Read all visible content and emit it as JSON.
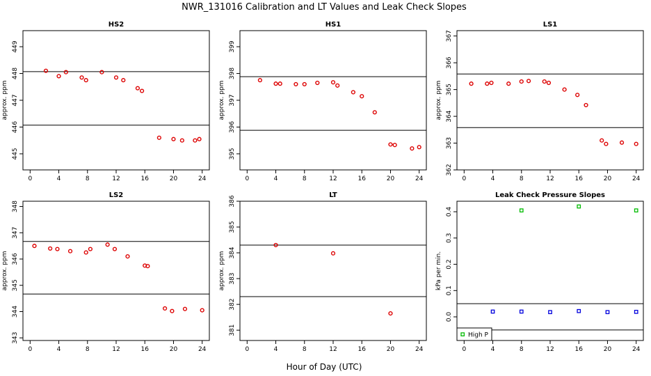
{
  "title": "NWR_131016  Calibration and LT Values and Leak Check Slopes",
  "xlabel": "Hour of Day (UTC)",
  "chart_data": [
    {
      "type": "scatter",
      "title": "HS2",
      "ylabel": "approx. ppm",
      "xlim": [
        -1,
        25
      ],
      "ylim": [
        444.4,
        449.6
      ],
      "xticks": [
        0,
        4,
        8,
        12,
        16,
        20,
        24
      ],
      "yticks": [
        445,
        446,
        447,
        448,
        449
      ],
      "hlines": [
        448.07,
        446.07
      ],
      "marker_color": "#dd0000",
      "points": [
        [
          2.2,
          448.1
        ],
        [
          4.0,
          447.9
        ],
        [
          5.0,
          448.05
        ],
        [
          7.2,
          447.85
        ],
        [
          7.8,
          447.75
        ],
        [
          10.0,
          448.05
        ],
        [
          12.0,
          447.85
        ],
        [
          13.0,
          447.75
        ],
        [
          15.0,
          447.45
        ],
        [
          15.6,
          447.35
        ],
        [
          18.0,
          445.6
        ],
        [
          20.0,
          445.55
        ],
        [
          21.2,
          445.5
        ],
        [
          23.0,
          445.5
        ],
        [
          23.6,
          445.55
        ]
      ]
    },
    {
      "type": "scatter",
      "title": "HS1",
      "ylabel": "approx. ppm",
      "xlim": [
        -1,
        25
      ],
      "ylim": [
        394.4,
        399.6
      ],
      "xticks": [
        0,
        4,
        8,
        12,
        16,
        20,
        24
      ],
      "yticks": [
        395,
        396,
        397,
        398,
        399
      ],
      "hlines": [
        397.88,
        395.88
      ],
      "marker_color": "#dd0000",
      "points": [
        [
          1.8,
          397.75
        ],
        [
          4.0,
          397.62
        ],
        [
          4.6,
          397.62
        ],
        [
          6.8,
          397.6
        ],
        [
          8.0,
          397.6
        ],
        [
          9.8,
          397.65
        ],
        [
          12.0,
          397.67
        ],
        [
          12.6,
          397.55
        ],
        [
          14.8,
          397.3
        ],
        [
          16.0,
          397.15
        ],
        [
          17.8,
          396.55
        ],
        [
          20.0,
          395.35
        ],
        [
          20.6,
          395.33
        ],
        [
          23.0,
          395.2
        ],
        [
          24.0,
          395.25
        ]
      ]
    },
    {
      "type": "scatter",
      "title": "LS1",
      "ylabel": "approx. ppm",
      "xlim": [
        -1,
        25
      ],
      "ylim": [
        362.0,
        367.2
      ],
      "xticks": [
        0,
        4,
        8,
        12,
        16,
        20,
        24
      ],
      "yticks": [
        362,
        363,
        364,
        365,
        366,
        367
      ],
      "hlines": [
        365.58,
        363.58
      ],
      "marker_color": "#dd0000",
      "points": [
        [
          1.0,
          365.22
        ],
        [
          3.2,
          365.22
        ],
        [
          3.8,
          365.25
        ],
        [
          6.2,
          365.22
        ],
        [
          8.0,
          365.3
        ],
        [
          9.0,
          365.32
        ],
        [
          11.2,
          365.3
        ],
        [
          11.8,
          365.25
        ],
        [
          14.0,
          365.0
        ],
        [
          15.8,
          364.8
        ],
        [
          17.0,
          364.42
        ],
        [
          19.2,
          363.1
        ],
        [
          19.8,
          362.97
        ],
        [
          22.0,
          363.02
        ],
        [
          24.0,
          362.97
        ]
      ]
    },
    {
      "type": "scatter",
      "title": "LS2",
      "ylabel": "approx. ppm",
      "xlim": [
        -1,
        25
      ],
      "ylim": [
        342.9,
        348.2
      ],
      "xticks": [
        0,
        4,
        8,
        12,
        16,
        20,
        24
      ],
      "yticks": [
        343,
        344,
        345,
        346,
        347,
        348
      ],
      "hlines": [
        346.67,
        344.67
      ],
      "marker_color": "#dd0000",
      "points": [
        [
          0.6,
          346.5
        ],
        [
          2.8,
          346.4
        ],
        [
          3.8,
          346.38
        ],
        [
          5.6,
          346.3
        ],
        [
          7.8,
          346.25
        ],
        [
          8.4,
          346.38
        ],
        [
          10.8,
          346.55
        ],
        [
          11.8,
          346.38
        ],
        [
          13.6,
          346.1
        ],
        [
          16.0,
          345.75
        ],
        [
          16.4,
          345.73
        ],
        [
          18.8,
          344.12
        ],
        [
          19.8,
          344.02
        ],
        [
          21.6,
          344.1
        ],
        [
          24.0,
          344.05
        ]
      ]
    },
    {
      "type": "scatter",
      "title": "LT",
      "ylabel": "approx. ppm",
      "xlim": [
        -1,
        25
      ],
      "ylim": [
        380.6,
        386.0
      ],
      "xticks": [
        0,
        4,
        8,
        12,
        16,
        20,
        24
      ],
      "yticks": [
        381,
        382,
        383,
        384,
        385,
        386
      ],
      "hlines": [
        384.3,
        382.3
      ],
      "marker_color": "#dd0000",
      "points": [
        [
          4.0,
          384.3
        ],
        [
          12.0,
          383.98
        ],
        [
          20.0,
          381.65
        ]
      ]
    },
    {
      "type": "scatter",
      "title": "Leak Check Pressure Slopes",
      "ylabel": "kPa per min.",
      "xlim": [
        -1,
        25
      ],
      "ylim": [
        -0.09,
        0.44
      ],
      "xticks": [
        0,
        4,
        8,
        12,
        16,
        20,
        24
      ],
      "yticks": [
        "0.0",
        "0.1",
        "0.2",
        "0.3",
        "0.4"
      ],
      "hlines": [
        0.05,
        -0.05
      ],
      "series": [
        {
          "name": "High P",
          "color": "#00bb00",
          "points": [
            [
              8,
              0.405
            ],
            [
              16,
              0.42
            ],
            [
              24,
              0.405
            ]
          ]
        },
        {
          "name": "",
          "color": "#0000dd",
          "points": [
            [
              4,
              0.02
            ],
            [
              8,
              0.02
            ],
            [
              12,
              0.018
            ],
            [
              16,
              0.022
            ],
            [
              20,
              0.018
            ],
            [
              24,
              0.019
            ]
          ]
        }
      ],
      "legend": {
        "position": "bottom-left",
        "entries": [
          "High P"
        ]
      }
    }
  ]
}
